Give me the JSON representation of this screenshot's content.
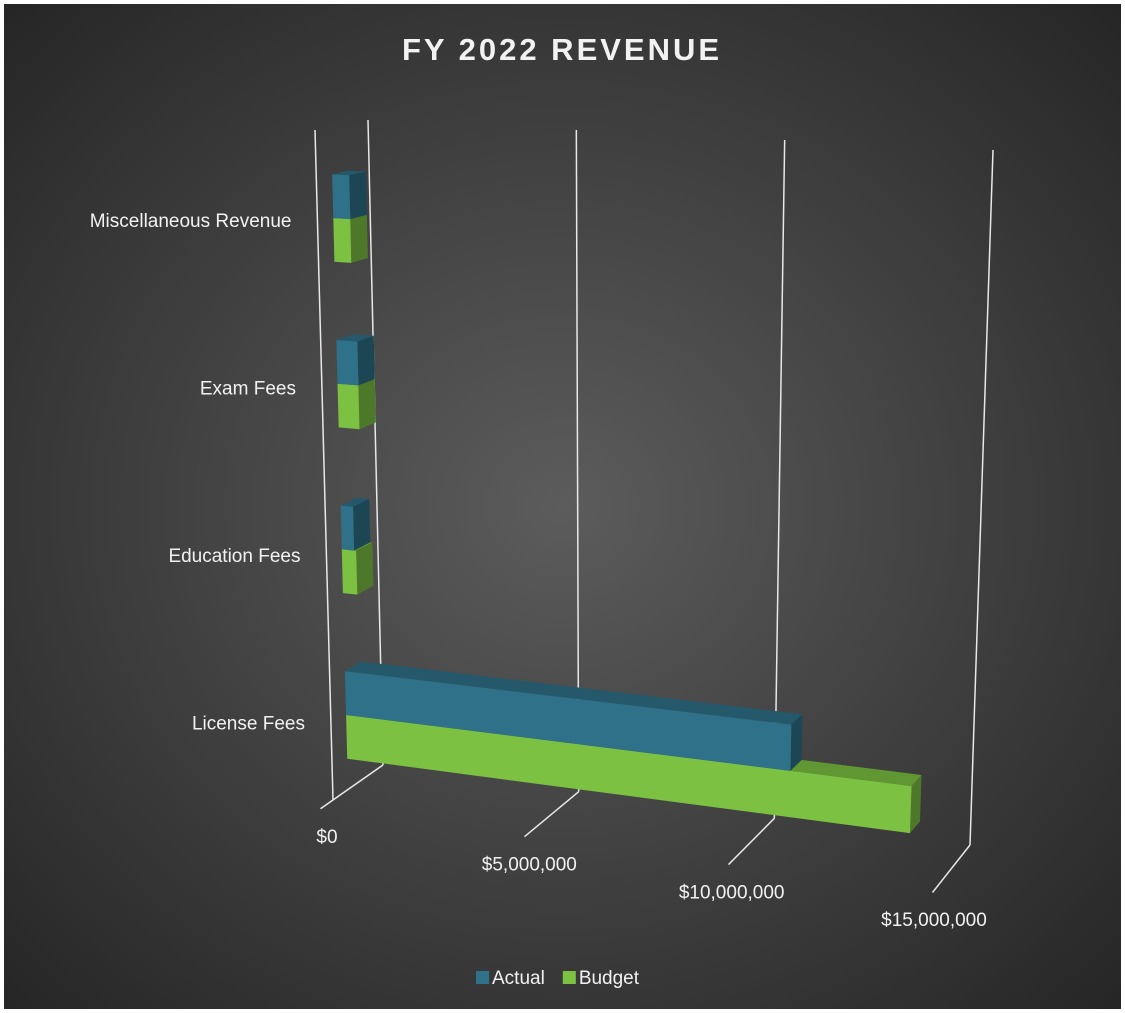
{
  "chart_data": {
    "type": "bar3d",
    "orientation": "horizontal",
    "title": "FY 2022 REVENUE",
    "categories": [
      "License Fees",
      "Education Fees",
      "Exam Fees",
      "Miscellaneous Revenue"
    ],
    "series": [
      {
        "name": "Actual",
        "color": "#2f7189",
        "values": [
          11000000,
          300000,
          500000,
          400000
        ]
      },
      {
        "name": "Budget",
        "color": "#7cc142",
        "values": [
          14000000,
          350000,
          500000,
          400000
        ]
      }
    ],
    "xlim": [
      0,
      15000000
    ],
    "xticks": [
      {
        "value": 0,
        "label": "$0"
      },
      {
        "value": 5000000,
        "label": "$5,000,000"
      },
      {
        "value": 10000000,
        "label": "$10,000,000"
      },
      {
        "value": 15000000,
        "label": "$15,000,000"
      }
    ],
    "grid": true,
    "legend": "bottom"
  }
}
